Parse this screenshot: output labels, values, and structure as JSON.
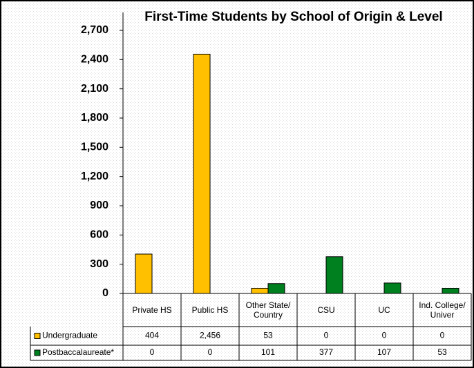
{
  "chart_data": {
    "type": "bar",
    "title": "First-Time Students by School of Origin & Level",
    "categories": [
      "Private HS",
      "Public HS",
      "Other State/ Country",
      "CSU",
      "UC",
      "Ind. College/ Univer"
    ],
    "series": [
      {
        "name": "Undergraduate",
        "color": "#ffc000",
        "values": [
          404,
          2456,
          53,
          0,
          0,
          0
        ],
        "value_labels": [
          "404",
          "2,456",
          "53",
          "0",
          "0",
          "0"
        ]
      },
      {
        "name": "Postbaccalaureate*",
        "color": "#00801f",
        "values": [
          0,
          0,
          101,
          377,
          107,
          53
        ]
      }
    ],
    "ylim": [
      0,
      2700
    ],
    "yticks": [
      0,
      300,
      600,
      900,
      {
        "value": 1200,
        "label": "1,200"
      },
      {
        "value": 1500,
        "label": "1,500"
      },
      {
        "value": 1800,
        "label": "1,800"
      },
      {
        "value": 2100,
        "label": "2,100"
      },
      {
        "value": 2400,
        "label": "2,400"
      },
      {
        "value": 2700,
        "label": "2,700"
      }
    ],
    "grid": false,
    "data_table": true
  }
}
